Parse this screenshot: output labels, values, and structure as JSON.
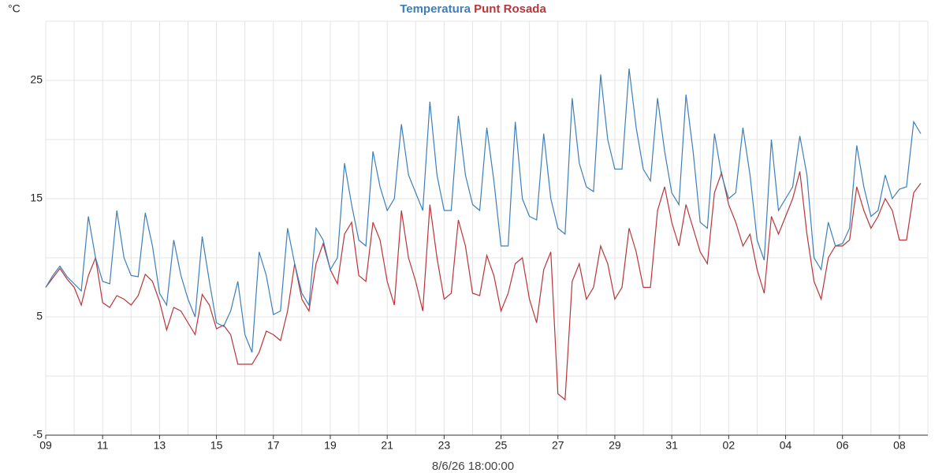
{
  "chart_data": {
    "type": "line",
    "y_label": "°C",
    "x_label": "8/6/26 18:00:00",
    "x": [
      "2026-05-09 00:00",
      "2026-05-09 06:00",
      "2026-05-09 12:00",
      "2026-05-09 18:00",
      "2026-05-10 00:00",
      "2026-05-10 06:00",
      "2026-05-10 12:00",
      "2026-05-10 18:00",
      "2026-05-11 00:00",
      "2026-05-11 06:00",
      "2026-05-11 12:00",
      "2026-05-11 18:00",
      "2026-05-12 00:00",
      "2026-05-12 06:00",
      "2026-05-12 12:00",
      "2026-05-12 18:00",
      "2026-05-13 00:00",
      "2026-05-13 06:00",
      "2026-05-13 12:00",
      "2026-05-13 18:00",
      "2026-05-14 00:00",
      "2026-05-14 06:00",
      "2026-05-14 12:00",
      "2026-05-14 18:00",
      "2026-05-15 00:00",
      "2026-05-15 06:00",
      "2026-05-15 12:00",
      "2026-05-15 18:00",
      "2026-05-16 00:00",
      "2026-05-16 06:00",
      "2026-05-16 12:00",
      "2026-05-16 18:00",
      "2026-05-17 00:00",
      "2026-05-17 06:00",
      "2026-05-17 12:00",
      "2026-05-17 18:00",
      "2026-05-18 00:00",
      "2026-05-18 06:00",
      "2026-05-18 12:00",
      "2026-05-18 18:00",
      "2026-05-19 00:00",
      "2026-05-19 06:00",
      "2026-05-19 12:00",
      "2026-05-19 18:00",
      "2026-05-20 00:00",
      "2026-05-20 06:00",
      "2026-05-20 12:00",
      "2026-05-20 18:00",
      "2026-05-21 00:00",
      "2026-05-21 06:00",
      "2026-05-21 12:00",
      "2026-05-21 18:00",
      "2026-05-22 00:00",
      "2026-05-22 06:00",
      "2026-05-22 12:00",
      "2026-05-22 18:00",
      "2026-05-23 00:00",
      "2026-05-23 06:00",
      "2026-05-23 12:00",
      "2026-05-23 18:00",
      "2026-05-24 00:00",
      "2026-05-24 06:00",
      "2026-05-24 12:00",
      "2026-05-24 18:00",
      "2026-05-25 00:00",
      "2026-05-25 06:00",
      "2026-05-25 12:00",
      "2026-05-25 18:00",
      "2026-05-26 00:00",
      "2026-05-26 06:00",
      "2026-05-26 12:00",
      "2026-05-26 18:00",
      "2026-05-27 00:00",
      "2026-05-27 06:00",
      "2026-05-27 12:00",
      "2026-05-27 18:00",
      "2026-05-28 00:00",
      "2026-05-28 06:00",
      "2026-05-28 12:00",
      "2026-05-28 18:00",
      "2026-05-29 00:00",
      "2026-05-29 06:00",
      "2026-05-29 12:00",
      "2026-05-29 18:00",
      "2026-05-30 00:00",
      "2026-05-30 06:00",
      "2026-05-30 12:00",
      "2026-05-30 18:00",
      "2026-05-31 00:00",
      "2026-05-31 06:00",
      "2026-05-31 12:00",
      "2026-05-31 18:00",
      "2026-06-01 00:00",
      "2026-06-01 06:00",
      "2026-06-01 12:00",
      "2026-06-01 18:00",
      "2026-06-02 00:00",
      "2026-06-02 06:00",
      "2026-06-02 12:00",
      "2026-06-02 18:00",
      "2026-06-03 00:00",
      "2026-06-03 06:00",
      "2026-06-03 12:00",
      "2026-06-03 18:00",
      "2026-06-04 00:00",
      "2026-06-04 06:00",
      "2026-06-04 12:00",
      "2026-06-04 18:00",
      "2026-06-05 00:00",
      "2026-06-05 06:00",
      "2026-06-05 12:00",
      "2026-06-05 18:00",
      "2026-06-06 00:00",
      "2026-06-06 06:00",
      "2026-06-06 12:00",
      "2026-06-06 18:00",
      "2026-06-07 00:00",
      "2026-06-07 06:00",
      "2026-06-07 12:00",
      "2026-06-07 18:00",
      "2026-06-08 00:00",
      "2026-06-08 06:00",
      "2026-06-08 12:00",
      "2026-06-08 18:00"
    ],
    "series": [
      {
        "name": "Temperatura",
        "color": "#3d7fb8",
        "values": [
          7.5,
          8.5,
          9.3,
          8.4,
          7.8,
          7.2,
          13.5,
          10,
          8.0,
          7.8,
          14,
          10,
          8.5,
          8.4,
          13.8,
          11,
          7.0,
          6.0,
          11.5,
          8.5,
          6.5,
          5.0,
          11.8,
          8,
          4.5,
          4.2,
          5.5,
          8.0,
          3.5,
          2.0,
          10.5,
          8.5,
          5.2,
          5.5,
          12.5,
          9.5,
          7.0,
          6.0,
          12.5,
          11.5,
          9.0,
          10,
          18,
          14.5,
          11.5,
          11,
          19,
          16,
          14,
          15,
          21.3,
          17,
          15.5,
          14,
          23.2,
          17,
          14,
          14,
          22,
          17,
          14.5,
          14,
          21,
          16.5,
          11,
          11,
          21.5,
          15,
          13.5,
          13.2,
          20.5,
          15,
          12.5,
          12,
          23.5,
          18,
          16,
          15.6,
          25.5,
          20,
          17.5,
          17.5,
          26,
          21,
          17.5,
          16.5,
          23.5,
          19,
          15.5,
          14.5,
          23.8,
          19,
          13,
          12.5,
          20.5,
          17,
          15,
          15.5,
          21,
          17,
          11.5,
          9.8,
          20,
          14,
          15,
          16,
          20.3,
          17,
          10,
          9,
          13,
          11,
          11.2,
          12.5,
          19.5,
          16,
          13.5,
          14,
          17,
          15,
          15.8,
          16,
          21.5,
          20.5
        ]
      },
      {
        "name": "Punt Rosada",
        "color": "#b8353b",
        "values": [
          7.5,
          8.3,
          9.1,
          8.2,
          7.5,
          6.0,
          8.5,
          10,
          6.2,
          5.8,
          6.8,
          6.5,
          6,
          6.8,
          8.6,
          8.0,
          6.3,
          3.9,
          5.8,
          5.5,
          4.5,
          3.5,
          6.9,
          6.0,
          4.0,
          4.3,
          3.5,
          1.0,
          1.0,
          1.0,
          2.0,
          3.8,
          3.5,
          3.0,
          5.5,
          9.5,
          6.5,
          5.5,
          9.5,
          11.2,
          9,
          7.8,
          12,
          13,
          8.5,
          8,
          13,
          11.5,
          8,
          6,
          14,
          10,
          8,
          5.5,
          14.5,
          10,
          6.5,
          7,
          13.2,
          11,
          7,
          6.8,
          10.2,
          8.5,
          5.5,
          7,
          9.5,
          10,
          6.5,
          4.5,
          9,
          10.5,
          -1.5,
          -2.0,
          8,
          9.5,
          6.5,
          7.5,
          11,
          9.5,
          6.5,
          7.5,
          12.5,
          10.5,
          7.5,
          7.5,
          14,
          16,
          13,
          11,
          14.5,
          12.5,
          10.5,
          9.5,
          15.5,
          17.2,
          14.5,
          13,
          11,
          12,
          9,
          7,
          13.5,
          12,
          13.5,
          15,
          17.3,
          12,
          8,
          6.5,
          10,
          11,
          11,
          11.5,
          16,
          14,
          12.5,
          13.5,
          15,
          14,
          11.5,
          11.5,
          15.5,
          16.3
        ]
      }
    ],
    "xlim": [
      "2026-05-09 00:00",
      "2026-06-09 00:00"
    ],
    "xticks": [
      {
        "value": "2026-05-09 00:00",
        "label": "09"
      },
      {
        "value": "2026-05-11 00:00",
        "label": "11"
      },
      {
        "value": "2026-05-13 00:00",
        "label": "13"
      },
      {
        "value": "2026-05-15 00:00",
        "label": "15"
      },
      {
        "value": "2026-05-17 00:00",
        "label": "17"
      },
      {
        "value": "2026-05-19 00:00",
        "label": "19"
      },
      {
        "value": "2026-05-21 00:00",
        "label": "21"
      },
      {
        "value": "2026-05-23 00:00",
        "label": "23"
      },
      {
        "value": "2026-05-25 00:00",
        "label": "25"
      },
      {
        "value": "2026-05-27 00:00",
        "label": "27"
      },
      {
        "value": "2026-05-29 00:00",
        "label": "29"
      },
      {
        "value": "2026-05-31 00:00",
        "label": "31"
      },
      {
        "value": "2026-06-02 00:00",
        "label": "02"
      },
      {
        "value": "2026-06-04 00:00",
        "label": "04"
      },
      {
        "value": "2026-06-06 00:00",
        "label": "06"
      },
      {
        "value": "2026-06-08 00:00",
        "label": "08"
      }
    ],
    "x_minor_grid": [
      "2026-05-10 00:00",
      "2026-05-12 00:00",
      "2026-05-14 00:00",
      "2026-05-16 00:00",
      "2026-05-18 00:00",
      "2026-05-20 00:00",
      "2026-05-22 00:00",
      "2026-05-24 00:00",
      "2026-05-26 00:00",
      "2026-05-28 00:00",
      "2026-05-30 00:00",
      "2026-06-01 00:00",
      "2026-06-03 00:00",
      "2026-06-05 00:00",
      "2026-06-07 00:00",
      "2026-06-09 00:00"
    ],
    "ylim": [
      -5,
      30
    ],
    "yticks": [
      -5,
      5,
      15,
      25
    ],
    "y_minor_grid": [
      0,
      10,
      20,
      30
    ],
    "grid": true
  }
}
